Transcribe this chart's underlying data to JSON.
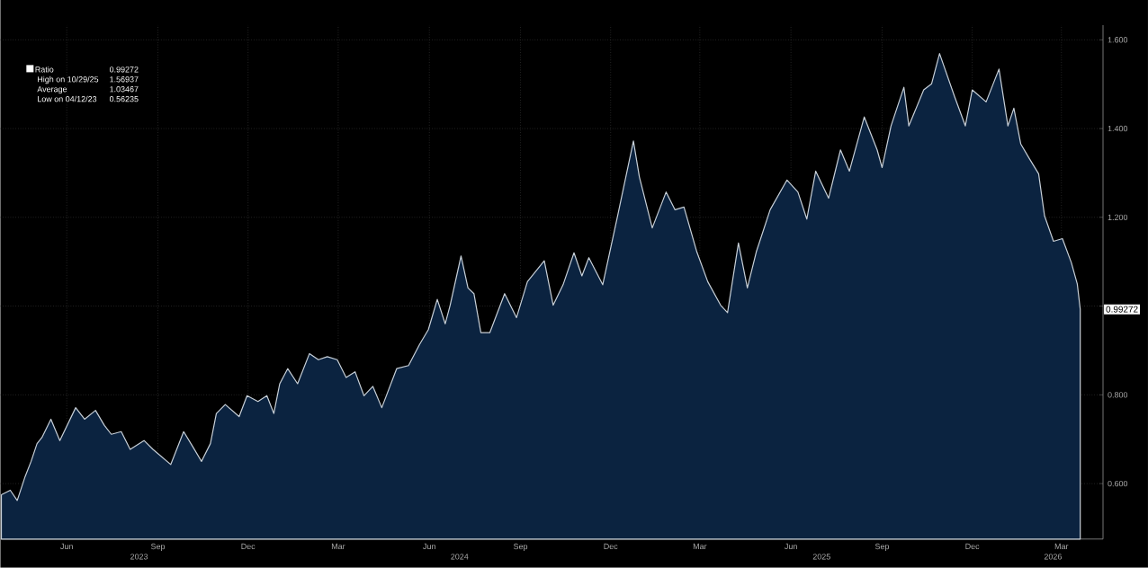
{
  "chart_data": {
    "type": "area",
    "x": [
      "2023-03-27",
      "2023-04-05",
      "2023-04-12",
      "2023-04-20",
      "2023-04-26",
      "2023-05-02",
      "2023-05-07",
      "2023-05-16",
      "2023-05-25",
      "2023-06-10",
      "2023-06-19",
      "2023-06-30",
      "2023-07-09",
      "2023-07-16",
      "2023-07-26",
      "2023-08-04",
      "2023-08-18",
      "2023-08-27",
      "2023-09-14",
      "2023-09-27",
      "2023-10-06",
      "2023-10-15",
      "2023-10-24",
      "2023-10-30",
      "2023-11-08",
      "2023-11-22",
      "2023-11-30",
      "2023-12-11",
      "2023-12-20",
      "2023-12-27",
      "2024-01-02",
      "2024-01-10",
      "2024-01-20",
      "2024-02-01",
      "2024-02-10",
      "2024-02-19",
      "2024-02-29",
      "2024-03-09",
      "2024-03-18",
      "2024-03-27",
      "2024-04-05",
      "2024-04-14",
      "2024-04-29",
      "2024-05-11",
      "2024-05-22",
      "2024-05-31",
      "2024-06-09",
      "2024-06-17",
      "2024-06-22",
      "2024-07-03",
      "2024-07-10",
      "2024-07-16",
      "2024-07-23",
      "2024-08-01",
      "2024-08-16",
      "2024-08-28",
      "2024-09-08",
      "2024-09-25",
      "2024-10-04",
      "2024-10-14",
      "2024-10-25",
      "2024-11-02",
      "2024-11-09",
      "2024-11-23",
      "2024-12-08",
      "2024-12-24",
      "2024-12-30",
      "2025-01-12",
      "2025-01-26",
      "2025-02-04",
      "2025-02-13",
      "2025-02-26",
      "2025-03-09",
      "2025-03-22",
      "2025-03-29",
      "2025-04-09",
      "2025-04-18",
      "2025-04-27",
      "2025-05-11",
      "2025-05-28",
      "2025-06-08",
      "2025-06-17",
      "2025-06-26",
      "2025-07-09",
      "2025-07-21",
      "2025-07-30",
      "2025-08-14",
      "2025-08-27",
      "2025-09-01",
      "2025-09-10",
      "2025-09-23",
      "2025-09-28",
      "2025-10-13",
      "2025-10-21",
      "2025-10-29",
      "2025-11-13",
      "2025-11-24",
      "2025-12-01",
      "2025-12-15",
      "2025-12-28",
      "2026-01-06",
      "2026-01-12",
      "2026-01-19",
      "2026-01-28",
      "2026-02-06",
      "2026-02-12",
      "2026-02-21",
      "2026-03-02",
      "2026-03-11",
      "2026-03-17",
      "2026-03-20"
    ],
    "series": [
      {
        "name": "Ratio",
        "color": "#0b2340",
        "values": [
          0.575,
          0.585,
          0.562,
          0.616,
          0.65,
          0.69,
          0.704,
          0.745,
          0.697,
          0.771,
          0.745,
          0.765,
          0.731,
          0.711,
          0.717,
          0.677,
          0.697,
          0.677,
          0.643,
          0.717,
          0.684,
          0.65,
          0.69,
          0.758,
          0.778,
          0.751,
          0.798,
          0.785,
          0.798,
          0.758,
          0.825,
          0.859,
          0.825,
          0.893,
          0.879,
          0.886,
          0.879,
          0.839,
          0.852,
          0.798,
          0.819,
          0.771,
          0.859,
          0.866,
          0.913,
          0.947,
          1.015,
          0.96,
          1.002,
          1.113,
          1.041,
          1.028,
          0.94,
          0.94,
          1.028,
          0.974,
          1.055,
          1.102,
          1.002,
          1.048,
          1.12,
          1.068,
          1.109,
          1.048,
          1.203,
          1.372,
          1.291,
          1.176,
          1.257,
          1.217,
          1.223,
          1.122,
          1.055,
          1.002,
          0.985,
          1.142,
          1.041,
          1.122,
          1.217,
          1.284,
          1.257,
          1.196,
          1.304,
          1.243,
          1.352,
          1.304,
          1.426,
          1.352,
          1.312,
          1.406,
          1.493,
          1.406,
          1.487,
          1.501,
          1.569,
          1.473,
          1.406,
          1.487,
          1.46,
          1.534,
          1.406,
          1.446,
          1.365,
          1.331,
          1.298,
          1.203,
          1.146,
          1.152,
          1.098,
          1.05,
          0.993
        ]
      }
    ],
    "xlim": [
      "2023-03-26",
      "2026-04-12"
    ],
    "xticks": [
      {
        "value": "2023-06-01",
        "label": "Jun"
      },
      {
        "value": "2023-09-01",
        "label": "Sep"
      },
      {
        "value": "2023-12-01",
        "label": "Dec"
      },
      {
        "value": "2024-03-01",
        "label": "Mar"
      },
      {
        "value": "2024-06-01",
        "label": "Jun"
      },
      {
        "value": "2024-09-01",
        "label": "Sep"
      },
      {
        "value": "2024-12-01",
        "label": "Dec"
      },
      {
        "value": "2025-03-01",
        "label": "Mar"
      },
      {
        "value": "2025-06-01",
        "label": "Jun"
      },
      {
        "value": "2025-09-01",
        "label": "Sep"
      },
      {
        "value": "2025-12-01",
        "label": "Dec"
      },
      {
        "value": "2026-03-01",
        "label": "Mar"
      }
    ],
    "ylim": [
      0.475,
      1.633
    ],
    "yticks": [
      {
        "value": 0.6,
        "label": "0.600"
      },
      {
        "value": 0.8,
        "label": "0.800"
      },
      {
        "value": 1.0,
        "label": null
      },
      {
        "value": 1.2,
        "label": "1.200"
      },
      {
        "value": 1.4,
        "label": "1.400"
      },
      {
        "value": 1.6,
        "label": "1.600"
      }
    ],
    "grid": true,
    "legend": "top left",
    "annotations": [
      "0.99272",
      "High on 10/29/25",
      "1.56937",
      "Average",
      "1.03467",
      "Low on 04/12/23",
      "0.56235",
      {
        "text": "0.99272",
        "x": "2026-03-20",
        "y": 0.99272
      },
      "2023",
      "2024",
      "2025",
      "2026"
    ]
  }
}
